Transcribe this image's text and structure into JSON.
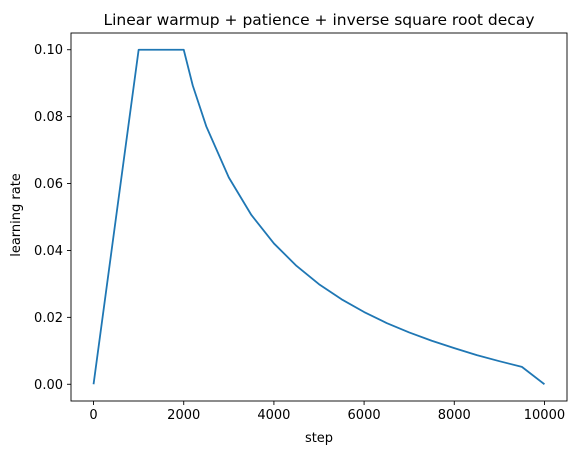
{
  "chart_data": {
    "type": "line",
    "title": "Linear warmup + patience + inverse square root decay",
    "xlabel": "step",
    "ylabel": "learning rate",
    "xlim": [
      -500,
      10500
    ],
    "ylim": [
      -0.005,
      0.105
    ],
    "xticks": [
      0,
      2000,
      4000,
      6000,
      8000,
      10000
    ],
    "xtick_labels": [
      "0",
      "2000",
      "4000",
      "6000",
      "8000",
      "10000"
    ],
    "yticks": [
      0.0,
      0.02,
      0.04,
      0.06,
      0.08,
      0.1
    ],
    "ytick_labels": [
      "0.00",
      "0.02",
      "0.04",
      "0.06",
      "0.08",
      "0.10"
    ],
    "grid": false,
    "series": [
      {
        "color": "#1f77b4",
        "x": [
          0,
          1000,
          2000,
          2200,
          2500,
          3000,
          3500,
          4000,
          4500,
          5000,
          5500,
          6000,
          6500,
          7000,
          7500,
          8000,
          8500,
          9000,
          9500,
          10000
        ],
        "y": [
          0.0,
          0.1,
          0.1,
          0.0893,
          0.0771,
          0.0618,
          0.0506,
          0.0421,
          0.0354,
          0.0299,
          0.0254,
          0.0216,
          0.0183,
          0.0155,
          0.013,
          0.0108,
          0.0087,
          0.0069,
          0.0052,
          0.0
        ]
      }
    ]
  }
}
